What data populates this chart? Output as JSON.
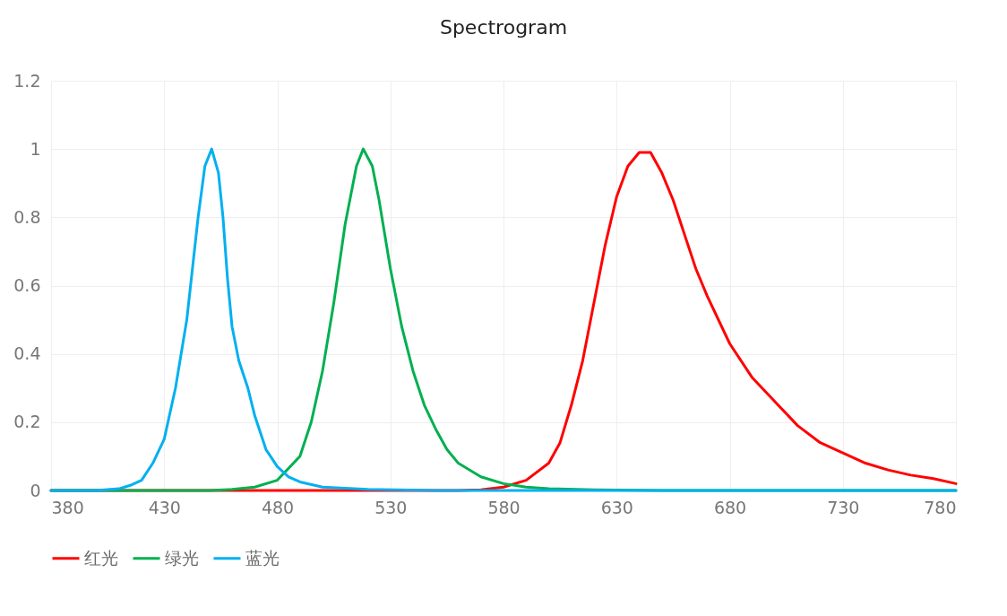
{
  "chart_data": {
    "type": "line",
    "title": "Spectrogram",
    "xlim": [
      380,
      780
    ],
    "xticks": [
      380,
      430,
      480,
      530,
      580,
      630,
      680,
      730,
      780
    ],
    "ylim": [
      0,
      1.2
    ],
    "yticks": [
      0,
      0.2,
      0.4,
      0.6,
      0.8,
      1,
      1.2
    ],
    "grid": true,
    "legend": "bottom",
    "marker": "none",
    "line_style": "solid",
    "series": [
      {
        "name": "红光",
        "color": "#ff0000",
        "x": [
          380,
          500,
          560,
          570,
          580,
          590,
          600,
          605,
          610,
          615,
          620,
          625,
          630,
          635,
          640,
          645,
          650,
          655,
          660,
          665,
          670,
          680,
          690,
          700,
          710,
          720,
          730,
          740,
          750,
          760,
          770,
          780
        ],
        "values": [
          0,
          0,
          0,
          0.002,
          0.01,
          0.03,
          0.08,
          0.14,
          0.25,
          0.38,
          0.55,
          0.72,
          0.86,
          0.95,
          0.99,
          0.99,
          0.93,
          0.85,
          0.75,
          0.65,
          0.57,
          0.43,
          0.33,
          0.26,
          0.19,
          0.14,
          0.11,
          0.08,
          0.06,
          0.045,
          0.035,
          0.02
        ]
      },
      {
        "name": "绿光",
        "color": "#00b050",
        "x": [
          380,
          450,
          460,
          470,
          480,
          490,
          495,
          500,
          505,
          510,
          515,
          518,
          522,
          525,
          530,
          535,
          540,
          545,
          550,
          555,
          560,
          570,
          580,
          590,
          600,
          620,
          650,
          780
        ],
        "values": [
          0,
          0,
          0.003,
          0.01,
          0.03,
          0.1,
          0.2,
          0.35,
          0.55,
          0.78,
          0.95,
          1,
          0.95,
          0.85,
          0.65,
          0.48,
          0.35,
          0.25,
          0.18,
          0.12,
          0.08,
          0.04,
          0.02,
          0.01,
          0.005,
          0.002,
          0,
          0
        ]
      },
      {
        "name": "蓝光",
        "color": "#00b0f0",
        "x": [
          380,
          400,
          410,
          415,
          420,
          425,
          430,
          435,
          440,
          445,
          448,
          451,
          454,
          456,
          458,
          460,
          463,
          467,
          470,
          475,
          480,
          485,
          490,
          500,
          520,
          550,
          780
        ],
        "values": [
          0,
          0,
          0.005,
          0.015,
          0.03,
          0.08,
          0.15,
          0.3,
          0.5,
          0.8,
          0.95,
          1,
          0.93,
          0.8,
          0.62,
          0.48,
          0.38,
          0.3,
          0.22,
          0.12,
          0.07,
          0.04,
          0.025,
          0.01,
          0.003,
          0,
          0
        ]
      }
    ]
  }
}
